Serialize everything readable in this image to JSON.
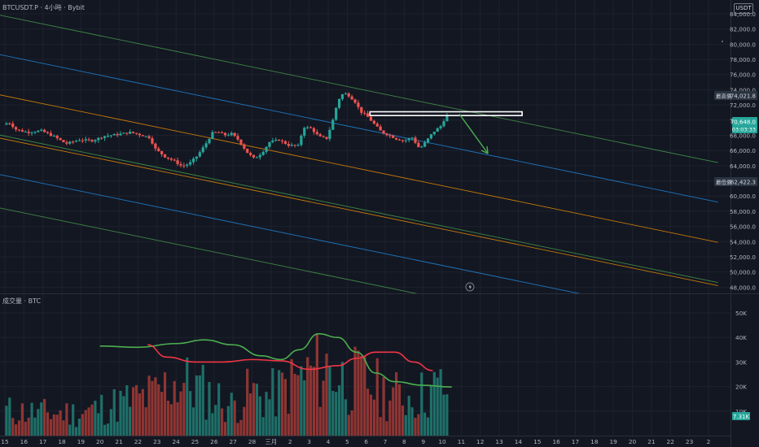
{
  "header": {
    "symbol": "BTCUSDT.P",
    "interval": "4小時",
    "exchange": "Bybit",
    "currency": "USDT"
  },
  "volume_header": {
    "label": "成交量",
    "currency": "BTC"
  },
  "colors": {
    "background": "#131722",
    "grid": "#1e222d",
    "up": "#26a69a",
    "down": "#ef5350",
    "up_volume": "#1e6f68",
    "down_volume": "#8f3533",
    "axis_text": "#b2b5be",
    "channel_green": "#4caf50",
    "channel_blue": "#2196f3",
    "channel_orange": "#ff9800",
    "ma_green": "#4caf50",
    "ma_red": "#f23645",
    "box": "#ffffff"
  },
  "chart_data": [
    {
      "type": "candlestick",
      "title": "BTCUSDT.P · 4小時 · Bybit",
      "price_axis": {
        "range": [
          47500,
          85500
        ],
        "ticks": [
          48000,
          50000,
          52000,
          54000,
          56000,
          58000,
          60000,
          62000,
          64000,
          66000,
          68000,
          70000,
          72000,
          74000,
          76000,
          78000,
          80000,
          82000,
          84000
        ],
        "tick_labels": [
          "48,000.0",
          "50,000.0",
          "52,000.0",
          "54,000.0",
          "56,000.0",
          "58,000.0",
          "60,000.0",
          "62,000.0",
          "64,000.0",
          "66,000.0",
          "68,000.0",
          "70,000.0",
          "72,000.0",
          "74,000.0",
          "76,000.0",
          "78,000.0",
          "80,000.0",
          "82,000.0",
          "84,000.0"
        ]
      },
      "time_axis": {
        "labels": [
          "15",
          "16",
          "17",
          "18",
          "19",
          "20",
          "21",
          "22",
          "23",
          "24",
          "25",
          "26",
          "27",
          "28",
          "三月",
          "2",
          "3",
          "4",
          "5",
          "6",
          "7",
          "8",
          "9",
          "10",
          "11",
          "12",
          "13",
          "14",
          "15",
          "16",
          "17",
          "18",
          "19",
          "20",
          "21",
          "22",
          "23",
          "2"
        ]
      },
      "price_labels": [
        {
          "name": "最高價",
          "value": "74,021.8"
        },
        {
          "name": "current",
          "value": "70,648.0",
          "countdown": "03:03:33"
        },
        {
          "name": "最低價",
          "value": "62,422.3"
        }
      ],
      "price_path": [
        {
          "day": 0.0,
          "price": 69400
        },
        {
          "day": 0.3,
          "price": 69700
        },
        {
          "day": 0.7,
          "price": 68700
        },
        {
          "day": 1.3,
          "price": 68400
        },
        {
          "day": 2.0,
          "price": 68600
        },
        {
          "day": 2.7,
          "price": 67800
        },
        {
          "day": 3.3,
          "price": 66900
        },
        {
          "day": 4.0,
          "price": 67400
        },
        {
          "day": 4.7,
          "price": 67300
        },
        {
          "day": 5.3,
          "price": 67900
        },
        {
          "day": 6.0,
          "price": 68100
        },
        {
          "day": 6.7,
          "price": 68400
        },
        {
          "day": 7.3,
          "price": 68000
        },
        {
          "day": 7.7,
          "price": 67700
        },
        {
          "day": 8.0,
          "price": 66200
        },
        {
          "day": 8.5,
          "price": 65200
        },
        {
          "day": 9.0,
          "price": 64600
        },
        {
          "day": 9.4,
          "price": 63900
        },
        {
          "day": 9.8,
          "price": 64300
        },
        {
          "day": 10.2,
          "price": 65300
        },
        {
          "day": 10.6,
          "price": 66700
        },
        {
          "day": 11.0,
          "price": 68300
        },
        {
          "day": 11.3,
          "price": 68400
        },
        {
          "day": 11.7,
          "price": 68000
        },
        {
          "day": 12.0,
          "price": 68200
        },
        {
          "day": 12.4,
          "price": 67300
        },
        {
          "day": 12.8,
          "price": 65800
        },
        {
          "day": 13.2,
          "price": 64900
        },
        {
          "day": 13.6,
          "price": 65700
        },
        {
          "day": 14.0,
          "price": 67100
        },
        {
          "day": 14.5,
          "price": 67400
        },
        {
          "day": 15.0,
          "price": 66700
        },
        {
          "day": 15.5,
          "price": 66600
        },
        {
          "day": 15.8,
          "price": 69100
        },
        {
          "day": 16.2,
          "price": 68900
        },
        {
          "day": 16.6,
          "price": 67800
        },
        {
          "day": 17.0,
          "price": 67600
        },
        {
          "day": 17.3,
          "price": 69700
        },
        {
          "day": 17.6,
          "price": 72600
        },
        {
          "day": 17.9,
          "price": 73600
        },
        {
          "day": 18.2,
          "price": 73200
        },
        {
          "day": 18.5,
          "price": 72400
        },
        {
          "day": 18.8,
          "price": 71100
        },
        {
          "day": 19.1,
          "price": 70600
        },
        {
          "day": 19.5,
          "price": 69500
        },
        {
          "day": 19.9,
          "price": 68400
        },
        {
          "day": 20.3,
          "price": 68000
        },
        {
          "day": 20.7,
          "price": 67500
        },
        {
          "day": 21.1,
          "price": 67300
        },
        {
          "day": 21.5,
          "price": 67700
        },
        {
          "day": 21.9,
          "price": 66200
        },
        {
          "day": 22.2,
          "price": 67100
        },
        {
          "day": 22.6,
          "price": 68400
        },
        {
          "day": 23.0,
          "price": 69200
        },
        {
          "day": 23.3,
          "price": 70600
        }
      ],
      "volume_axis": {
        "range": [
          0,
          58000
        ],
        "ticks": [
          10000,
          20000,
          30000,
          40000,
          50000
        ],
        "tick_labels": [
          "10K",
          "20K",
          "30K",
          "40K",
          "50K"
        ],
        "current_value": "7.31K"
      },
      "volume_path": [
        {
          "day": 0,
          "value": 11000
        },
        {
          "day": 2,
          "value": 10000
        },
        {
          "day": 4,
          "value": 10000
        },
        {
          "day": 6,
          "value": 14000
        },
        {
          "day": 8,
          "value": 18000
        },
        {
          "day": 9,
          "value": 24000
        },
        {
          "day": 10,
          "value": 22000
        },
        {
          "day": 12,
          "value": 13000
        },
        {
          "day": 13,
          "value": 19000
        },
        {
          "day": 14,
          "value": 17000
        },
        {
          "day": 15,
          "value": 22000
        },
        {
          "day": 16,
          "value": 27000
        },
        {
          "day": 17,
          "value": 30000
        },
        {
          "day": 18,
          "value": 24000
        },
        {
          "day": 19,
          "value": 24000
        },
        {
          "day": 20,
          "value": 19000
        },
        {
          "day": 21,
          "value": 17000
        },
        {
          "day": 22,
          "value": 18000
        },
        {
          "day": 23,
          "value": 21000
        }
      ],
      "channel_lines": [
        {
          "color": "green",
          "start": {
            "day": -0.6,
            "price": 84000
          },
          "end": {
            "day": 37.5,
            "price": 64400
          }
        },
        {
          "color": "blue",
          "start": {
            "day": -0.6,
            "price": 78800
          },
          "end": {
            "day": 37.5,
            "price": 59200
          }
        },
        {
          "color": "orange",
          "start": {
            "day": -0.6,
            "price": 73500
          },
          "end": {
            "day": 37.5,
            "price": 53900
          }
        },
        {
          "color": "green",
          "start": {
            "day": -0.6,
            "price": 68200
          },
          "end": {
            "day": 37.5,
            "price": 48600
          }
        },
        {
          "color": "orange",
          "start": {
            "day": -0.6,
            "price": 67800
          },
          "end": {
            "day": 37.5,
            "price": 48200
          }
        },
        {
          "color": "blue",
          "start": {
            "day": -0.6,
            "price": 63000
          },
          "end": {
            "day": 37.5,
            "price": 43400
          }
        },
        {
          "color": "green",
          "start": {
            "day": -0.6,
            "price": 58600
          },
          "end": {
            "day": 37.5,
            "price": 39000
          }
        }
      ],
      "resistance_box": {
        "from_day": 19.2,
        "to_day": 27.2,
        "price_top": 71100,
        "price_bottom": 70600
      },
      "projection_arrow": [
        {
          "day": 23.9,
          "price": 70800
        },
        {
          "day": 25.4,
          "price": 65600
        }
      ],
      "moving_averages": [
        {
          "color": "green",
          "points": [
            {
              "day": 5.0,
              "value": 36500
            },
            {
              "day": 7.0,
              "value": 36000
            },
            {
              "day": 9.0,
              "value": 37500
            },
            {
              "day": 10.5,
              "value": 39000
            },
            {
              "day": 12.0,
              "value": 37000
            },
            {
              "day": 13.5,
              "value": 32500
            },
            {
              "day": 14.5,
              "value": 31000
            },
            {
              "day": 15.5,
              "value": 35000
            },
            {
              "day": 16.5,
              "value": 41500
            },
            {
              "day": 17.5,
              "value": 40000
            },
            {
              "day": 18.5,
              "value": 34000
            },
            {
              "day": 19.5,
              "value": 25500
            },
            {
              "day": 20.5,
              "value": 22000
            },
            {
              "day": 22.0,
              "value": 20500
            },
            {
              "day": 23.5,
              "value": 19800
            }
          ]
        },
        {
          "color": "red",
          "points": [
            {
              "day": 7.5,
              "value": 37000
            },
            {
              "day": 8.5,
              "value": 32000
            },
            {
              "day": 10.0,
              "value": 30000
            },
            {
              "day": 11.5,
              "value": 30000
            },
            {
              "day": 13.0,
              "value": 31000
            },
            {
              "day": 14.5,
              "value": 30500
            },
            {
              "day": 16.0,
              "value": 27000
            },
            {
              "day": 17.5,
              "value": 28500
            },
            {
              "day": 18.5,
              "value": 31500
            },
            {
              "day": 19.5,
              "value": 34000
            },
            {
              "day": 20.5,
              "value": 34000
            },
            {
              "day": 21.5,
              "value": 30000
            },
            {
              "day": 22.5,
              "value": 26500
            }
          ]
        }
      ]
    }
  ]
}
